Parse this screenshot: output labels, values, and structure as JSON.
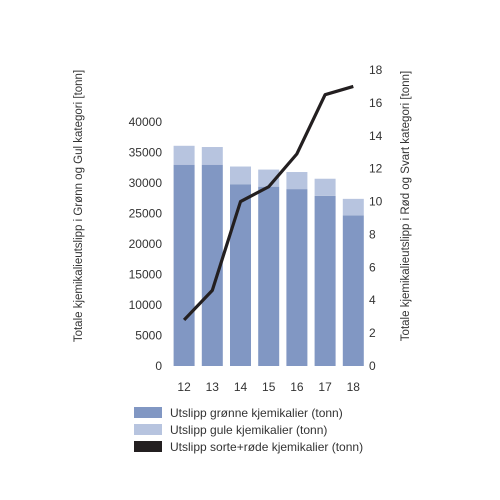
{
  "chart_data": {
    "type": "bar",
    "categories": [
      "12",
      "13",
      "14",
      "15",
      "16",
      "17",
      "18"
    ],
    "series": [
      {
        "name": "Utslipp grønne kjemikalier (tonn)",
        "type": "bar",
        "stack": "primary",
        "axis": "left",
        "color": "#8197c3",
        "values": [
          33000,
          33000,
          29800,
          29400,
          29000,
          27900,
          24700
        ]
      },
      {
        "name": "Utslipp gule kjemikalier (tonn)",
        "type": "bar",
        "stack": "primary",
        "axis": "left",
        "color": "#b7c4df",
        "values": [
          3100,
          2900,
          2900,
          2800,
          2800,
          2800,
          2700
        ]
      },
      {
        "name": "Utslipp sorte+røde kjemikalier (tonn)",
        "type": "line",
        "axis": "right",
        "color": "#231f20",
        "values": [
          2.8,
          4.6,
          10.0,
          10.9,
          12.9,
          16.5,
          17.0
        ]
      }
    ],
    "ylabel": "Totale kjemikalieutslipp i Grønn og Gul kategori [tonn]",
    "y2label": "Totale kjemikalieutslipp i Rød og Svart kategori [tonn]",
    "ylim": [
      0,
      40000
    ],
    "yticks": [
      "0",
      "5000",
      "10000",
      "15000",
      "20000",
      "25000",
      "30000",
      "35000",
      "40000"
    ],
    "y2lim": [
      0,
      18
    ],
    "y2ticks": [
      "0",
      "2",
      "4",
      "6",
      "8",
      "10",
      "12",
      "14",
      "16",
      "18"
    ],
    "grid": false,
    "legend_position": "bottom"
  }
}
